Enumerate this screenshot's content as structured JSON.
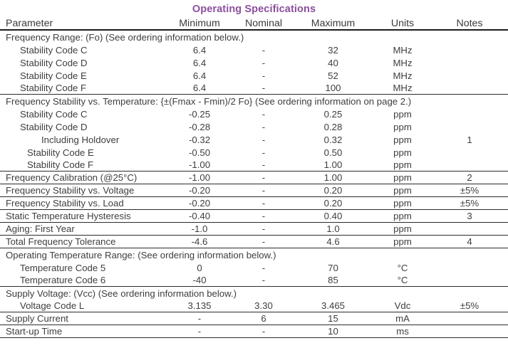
{
  "title": "Operating Specifications",
  "accent_color": "#8b4f9c",
  "text_color": "#3e3e3e",
  "rule_color": "#2b2b2b",
  "table": {
    "columns": [
      "Parameter",
      "Minimum",
      "Nominal",
      "Maximum",
      "Units",
      "Notes"
    ],
    "rows": [
      {
        "type": "section",
        "indent": 0,
        "label": "Frequency Range: (Fo) (See ordering information below.)",
        "min": "",
        "nom": "",
        "max": "",
        "units": "",
        "notes": "",
        "rule": false
      },
      {
        "type": "item",
        "indent": 1,
        "label": "Stability Code C",
        "min": "6.4",
        "nom": "-",
        "max": "32",
        "units": "MHz",
        "notes": "",
        "rule": false
      },
      {
        "type": "item",
        "indent": 1,
        "label": "Stability Code D",
        "min": "6.4",
        "nom": "-",
        "max": "40",
        "units": "MHz",
        "notes": "",
        "rule": false
      },
      {
        "type": "item",
        "indent": 1,
        "label": "Stability Code E",
        "min": "6.4",
        "nom": "-",
        "max": "52",
        "units": "MHz",
        "notes": "",
        "rule": false
      },
      {
        "type": "item",
        "indent": 1,
        "label": "Stability Code F",
        "min": "6.4",
        "nom": "-",
        "max": "100",
        "units": "MHz",
        "notes": "",
        "rule": true
      },
      {
        "type": "section",
        "indent": 0,
        "label": "Frequency Stability vs. Temperature: {±(Fmax - Fmin)/2 Fo} (See ordering information on page 2.)",
        "min": "",
        "nom": "",
        "max": "",
        "units": "",
        "notes": "",
        "rule": false
      },
      {
        "type": "item",
        "indent": 1,
        "label": "Stability Code C",
        "min": "-0.25",
        "nom": "-",
        "max": "0.25",
        "units": "ppm",
        "notes": "",
        "rule": false
      },
      {
        "type": "item",
        "indent": 1,
        "label": "Stability Code D",
        "min": "-0.28",
        "nom": "-",
        "max": "0.28",
        "units": "ppm",
        "notes": "",
        "rule": false
      },
      {
        "type": "item",
        "indent": 3,
        "label": "Including Holdover",
        "min": "-0.32",
        "nom": "-",
        "max": "0.32",
        "units": "ppm",
        "notes": "1",
        "rule": false
      },
      {
        "type": "item",
        "indent": 2,
        "label": "Stability Code E",
        "min": "-0.50",
        "nom": "-",
        "max": "0.50",
        "units": "ppm",
        "notes": "",
        "rule": false
      },
      {
        "type": "item",
        "indent": 2,
        "label": "Stability Code F",
        "min": "-1.00",
        "nom": "-",
        "max": "1.00",
        "units": "ppm",
        "notes": "",
        "rule": true
      },
      {
        "type": "item",
        "indent": 0,
        "label": "Frequency Calibration (@25°C)",
        "min": "-1.00",
        "nom": "-",
        "max": "1.00",
        "units": "ppm",
        "notes": "2",
        "rule": true
      },
      {
        "type": "item",
        "indent": 0,
        "label": "Frequency Stability vs. Voltage",
        "min": "-0.20",
        "nom": "-",
        "max": "0.20",
        "units": "ppm",
        "notes": "±5%",
        "rule": true
      },
      {
        "type": "item",
        "indent": 0,
        "label": "Frequency Stability vs. Load",
        "min": "-0.20",
        "nom": "-",
        "max": "0.20",
        "units": "ppm",
        "notes": "±5%",
        "rule": true
      },
      {
        "type": "item",
        "indent": 0,
        "label": "Static Temperature Hysteresis",
        "min": "-0.40",
        "nom": "-",
        "max": "0.40",
        "units": "ppm",
        "notes": "3",
        "rule": true
      },
      {
        "type": "item",
        "indent": 0,
        "label": "Aging: First Year",
        "min": "-1.0",
        "nom": "-",
        "max": "1.0",
        "units": "ppm",
        "notes": "",
        "rule": true
      },
      {
        "type": "item",
        "indent": 0,
        "label": "Total Frequency Tolerance",
        "min": "-4.6",
        "nom": "-",
        "max": "4.6",
        "units": "ppm",
        "notes": "4",
        "rule": true
      },
      {
        "type": "section",
        "indent": 0,
        "label": "Operating Temperature Range: (See ordering information below.)",
        "min": "",
        "nom": "",
        "max": "",
        "units": "",
        "notes": "",
        "rule": false
      },
      {
        "type": "item",
        "indent": 1,
        "label": "Temperature Code 5",
        "min": "0",
        "nom": "-",
        "max": "70",
        "units": "°C",
        "notes": "",
        "rule": false
      },
      {
        "type": "item",
        "indent": 1,
        "label": "Temperature Code 6",
        "min": "-40",
        "nom": "-",
        "max": "85",
        "units": "°C",
        "notes": "",
        "rule": true
      },
      {
        "type": "section",
        "indent": 0,
        "label": "Supply Voltage: (Vcc) (See ordering information below.)",
        "min": "",
        "nom": "",
        "max": "",
        "units": "",
        "notes": "",
        "rule": false
      },
      {
        "type": "item",
        "indent": 1,
        "label": "Voltage Code L",
        "min": "3.135",
        "nom": "3.30",
        "max": "3.465",
        "units": "Vdc",
        "notes": "±5%",
        "rule": true
      },
      {
        "type": "item",
        "indent": 0,
        "label": "Supply Current",
        "min": "-",
        "nom": "6",
        "max": "15",
        "units": "mA",
        "notes": "",
        "rule": true
      },
      {
        "type": "item",
        "indent": 0,
        "label": "Start-up Time",
        "min": "-",
        "nom": "-",
        "max": "10",
        "units": "ms",
        "notes": "",
        "rule": true
      }
    ]
  }
}
